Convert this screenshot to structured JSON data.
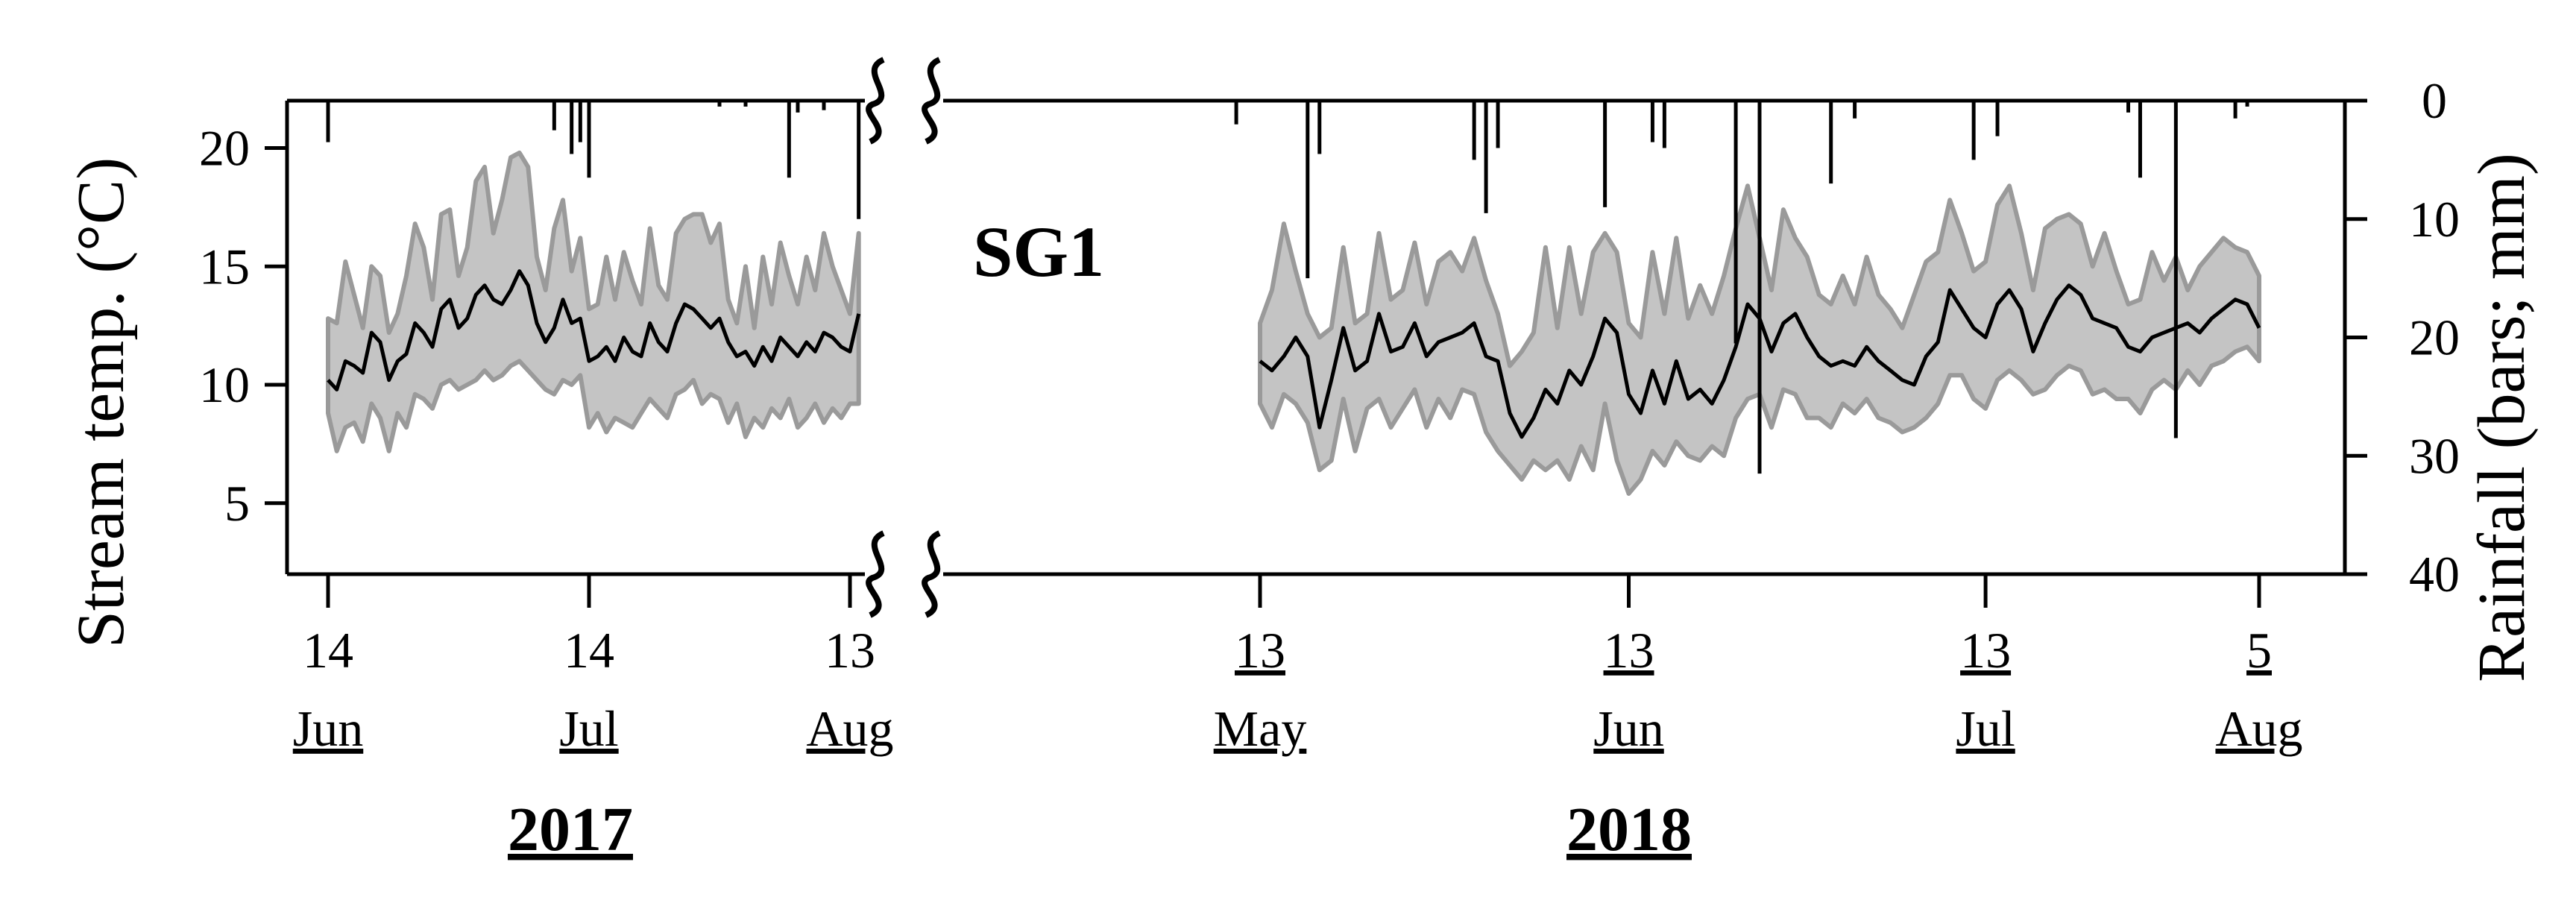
{
  "chart_data": {
    "type": "line",
    "panel_label": "SG1",
    "ylabel_left": "Stream temp. (°C)",
    "ylabel_right": "Rainfall (bars; mm)",
    "y_left_ticks": [
      "5",
      "10",
      "15",
      "20"
    ],
    "y_left_range": [
      2,
      22
    ],
    "y_right_ticks": [
      "0",
      "10",
      "20",
      "30",
      "40"
    ],
    "y_right_range": [
      0,
      40
    ],
    "segments": [
      {
        "year": "2017",
        "x_ticks": [
          {
            "date": "2017-06-14",
            "day": "14",
            "month": "Jun",
            "day_underlined": false
          },
          {
            "date": "2017-07-14",
            "day": "14",
            "month": "Jul",
            "day_underlined": false
          },
          {
            "date": "2017-08-13",
            "day": "13",
            "month": "Aug",
            "day_underlined": false
          }
        ],
        "x_range": [
          "2017-06-14",
          "2017-08-15"
        ],
        "series": [
          {
            "role": "daily_mean",
            "x": [
              "2017-06-14",
              "2017-06-15",
              "2017-06-16",
              "2017-06-17",
              "2017-06-18",
              "2017-06-19",
              "2017-06-20",
              "2017-06-21",
              "2017-06-22",
              "2017-06-23",
              "2017-06-24",
              "2017-06-25",
              "2017-06-26",
              "2017-06-27",
              "2017-06-28",
              "2017-06-29",
              "2017-06-30",
              "2017-07-01",
              "2017-07-02",
              "2017-07-03",
              "2017-07-04",
              "2017-07-05",
              "2017-07-06",
              "2017-07-07",
              "2017-07-08",
              "2017-07-09",
              "2017-07-10",
              "2017-07-11",
              "2017-07-12",
              "2017-07-13",
              "2017-07-14",
              "2017-07-15",
              "2017-07-16",
              "2017-07-17",
              "2017-07-18",
              "2017-07-19",
              "2017-07-20",
              "2017-07-21",
              "2017-07-22",
              "2017-07-23",
              "2017-07-24",
              "2017-07-25",
              "2017-07-26",
              "2017-07-27",
              "2017-07-28",
              "2017-07-29",
              "2017-07-30",
              "2017-07-31",
              "2017-08-01",
              "2017-08-02",
              "2017-08-03",
              "2017-08-04",
              "2017-08-05",
              "2017-08-06",
              "2017-08-07",
              "2017-08-08",
              "2017-08-09",
              "2017-08-10",
              "2017-08-11",
              "2017-08-12",
              "2017-08-13",
              "2017-08-14"
            ],
            "values": [
              10.2,
              9.8,
              11.0,
              10.8,
              10.5,
              12.2,
              11.8,
              10.2,
              11.0,
              11.3,
              12.6,
              12.2,
              11.6,
              13.2,
              13.6,
              12.4,
              12.8,
              13.8,
              14.2,
              13.6,
              13.4,
              14.0,
              14.8,
              14.2,
              12.6,
              11.8,
              12.4,
              13.6,
              12.6,
              12.8,
              11.0,
              11.2,
              11.6,
              11.0,
              12.0,
              11.4,
              11.2,
              12.6,
              11.8,
              11.4,
              12.6,
              13.4,
              13.2,
              12.8,
              12.4,
              12.8,
              11.8,
              11.2,
              11.4,
              10.8,
              11.6,
              11.0,
              12.0,
              11.6,
              11.2,
              11.8,
              11.4,
              12.2,
              12.0,
              11.6,
              11.4,
              13.0
            ]
          },
          {
            "role": "daily_max",
            "values": [
              12.8,
              12.6,
              15.2,
              13.8,
              12.4,
              15.0,
              14.6,
              12.2,
              13.0,
              14.6,
              16.8,
              15.8,
              13.6,
              17.2,
              17.4,
              14.6,
              15.8,
              18.6,
              19.2,
              16.4,
              17.8,
              19.6,
              19.8,
              19.2,
              15.4,
              14.0,
              16.6,
              17.8,
              14.8,
              16.2,
              13.2,
              13.4,
              15.4,
              13.6,
              15.6,
              14.4,
              13.4,
              16.6,
              14.2,
              13.6,
              16.4,
              17.0,
              17.2,
              17.2,
              16.0,
              16.8,
              13.6,
              12.6,
              15.0,
              12.4,
              15.4,
              13.4,
              16.0,
              14.6,
              13.4,
              15.4,
              14.0,
              16.4,
              15.0,
              14.0,
              13.0,
              16.4
            ]
          },
          {
            "role": "daily_min",
            "values": [
              8.8,
              7.2,
              8.2,
              8.4,
              7.6,
              9.2,
              8.6,
              7.2,
              8.8,
              8.2,
              9.6,
              9.4,
              9.0,
              10.0,
              10.2,
              9.8,
              10.0,
              10.2,
              10.6,
              10.2,
              10.4,
              10.8,
              11.0,
              10.6,
              10.2,
              9.8,
              9.6,
              10.2,
              10.0,
              10.4,
              8.2,
              8.8,
              8.0,
              8.6,
              8.4,
              8.2,
              8.8,
              9.4,
              9.0,
              8.6,
              9.6,
              9.8,
              10.2,
              9.2,
              9.6,
              9.4,
              8.4,
              9.2,
              7.8,
              8.6,
              8.2,
              9.0,
              8.6,
              9.4,
              8.2,
              8.6,
              9.2,
              8.4,
              9.0,
              8.6,
              9.2,
              9.2
            ]
          }
        ],
        "rainfall_mm": [
          {
            "date": "2017-06-14",
            "value": 3.5
          },
          {
            "date": "2017-07-10",
            "value": 2.5
          },
          {
            "date": "2017-07-12",
            "value": 4.5
          },
          {
            "date": "2017-07-13",
            "value": 3.5
          },
          {
            "date": "2017-07-14",
            "value": 6.5
          },
          {
            "date": "2017-07-29",
            "value": 0.5
          },
          {
            "date": "2017-08-01",
            "value": 0.5
          },
          {
            "date": "2017-08-06",
            "value": 6.5
          },
          {
            "date": "2017-08-07",
            "value": 1.0
          },
          {
            "date": "2017-08-10",
            "value": 0.8
          },
          {
            "date": "2017-08-14",
            "value": 10.0
          }
        ]
      },
      {
        "year": "2018",
        "x_ticks": [
          {
            "date": "2018-05-13",
            "day": "13",
            "month": "May",
            "day_underlined": true
          },
          {
            "date": "2018-06-13",
            "day": "13",
            "month": "Jun",
            "day_underlined": true
          },
          {
            "date": "2018-07-13",
            "day": "13",
            "month": "Jul",
            "day_underlined": true
          },
          {
            "date": "2018-08-05",
            "day": "5",
            "month": "Aug",
            "day_underlined": true
          }
        ],
        "x_range": [
          "2018-05-08",
          "2018-08-09"
        ],
        "series": [
          {
            "role": "daily_mean",
            "x": [
              "2018-05-13",
              "2018-05-14",
              "2018-05-15",
              "2018-05-16",
              "2018-05-17",
              "2018-05-18",
              "2018-05-19",
              "2018-05-20",
              "2018-05-21",
              "2018-05-22",
              "2018-05-23",
              "2018-05-24",
              "2018-05-25",
              "2018-05-26",
              "2018-05-27",
              "2018-05-28",
              "2018-05-29",
              "2018-05-30",
              "2018-05-31",
              "2018-06-01",
              "2018-06-02",
              "2018-06-03",
              "2018-06-04",
              "2018-06-05",
              "2018-06-06",
              "2018-06-07",
              "2018-06-08",
              "2018-06-09",
              "2018-06-10",
              "2018-06-11",
              "2018-06-12",
              "2018-06-13",
              "2018-06-14",
              "2018-06-15",
              "2018-06-16",
              "2018-06-17",
              "2018-06-18",
              "2018-06-19",
              "2018-06-20",
              "2018-06-21",
              "2018-06-22",
              "2018-06-23",
              "2018-06-24",
              "2018-06-25",
              "2018-06-26",
              "2018-06-27",
              "2018-06-28",
              "2018-06-29",
              "2018-06-30",
              "2018-07-01",
              "2018-07-02",
              "2018-07-03",
              "2018-07-04",
              "2018-07-05",
              "2018-07-06",
              "2018-07-07",
              "2018-07-08",
              "2018-07-09",
              "2018-07-10",
              "2018-07-11",
              "2018-07-12",
              "2018-07-13",
              "2018-07-14",
              "2018-07-15",
              "2018-07-16",
              "2018-07-17",
              "2018-07-18",
              "2018-07-19",
              "2018-07-20",
              "2018-07-21",
              "2018-07-22",
              "2018-07-23",
              "2018-07-24",
              "2018-07-25",
              "2018-07-26",
              "2018-07-27",
              "2018-07-28",
              "2018-07-29",
              "2018-07-30",
              "2018-07-31",
              "2018-08-01",
              "2018-08-02",
              "2018-08-03",
              "2018-08-04",
              "2018-08-05"
            ],
            "values": [
              11.0,
              10.6,
              11.2,
              12.0,
              11.2,
              8.2,
              10.2,
              12.4,
              10.6,
              11.0,
              13.0,
              11.4,
              11.6,
              12.6,
              11.2,
              11.8,
              12.0,
              12.2,
              12.6,
              11.2,
              11.0,
              8.8,
              7.8,
              8.6,
              9.8,
              9.2,
              10.6,
              10.0,
              11.2,
              12.8,
              12.2,
              9.6,
              8.8,
              10.6,
              9.2,
              11.0,
              9.4,
              9.8,
              9.2,
              10.2,
              11.6,
              13.4,
              12.8,
              11.4,
              12.6,
              13.0,
              12.0,
              11.2,
              10.8,
              11.0,
              10.8,
              11.6,
              11.0,
              10.6,
              10.2,
              10.0,
              11.2,
              11.8,
              14.0,
              13.2,
              12.4,
              12.0,
              13.4,
              14.0,
              13.2,
              11.4,
              12.6,
              13.6,
              14.2,
              13.8,
              12.8,
              12.6,
              12.4,
              11.6,
              11.4,
              12.0,
              12.2,
              12.4,
              12.6,
              12.2,
              12.8,
              13.2,
              13.6,
              13.4,
              12.4
            ]
          },
          {
            "role": "daily_max",
            "values": [
              12.6,
              14.0,
              16.8,
              14.8,
              13.0,
              12.0,
              12.4,
              15.8,
              12.6,
              13.0,
              16.4,
              13.6,
              14.0,
              16.0,
              13.4,
              15.2,
              15.6,
              14.8,
              16.2,
              14.4,
              13.0,
              10.8,
              11.4,
              12.2,
              15.8,
              12.4,
              15.8,
              13.0,
              15.6,
              16.4,
              15.6,
              12.6,
              12.0,
              15.6,
              13.0,
              16.2,
              12.8,
              14.2,
              13.0,
              14.6,
              16.6,
              18.4,
              16.2,
              14.0,
              17.4,
              16.2,
              15.4,
              13.8,
              13.4,
              14.6,
              13.4,
              15.4,
              13.8,
              13.2,
              12.4,
              13.8,
              15.2,
              15.6,
              17.8,
              16.4,
              14.8,
              15.2,
              17.6,
              18.4,
              16.4,
              14.0,
              16.6,
              17.0,
              17.2,
              16.8,
              15.0,
              16.4,
              14.8,
              13.4,
              13.6,
              15.6,
              14.4,
              15.4,
              14.0,
              15.0,
              15.6,
              16.2,
              15.8,
              15.6,
              14.6
            ]
          },
          {
            "role": "daily_min",
            "values": [
              9.2,
              8.2,
              9.6,
              9.2,
              8.4,
              6.4,
              6.8,
              9.4,
              7.2,
              9.0,
              9.4,
              8.2,
              9.0,
              9.8,
              8.2,
              9.4,
              8.6,
              9.8,
              9.6,
              8.0,
              7.2,
              6.6,
              6.0,
              6.8,
              6.4,
              6.8,
              6.0,
              7.4,
              6.4,
              9.2,
              6.8,
              5.4,
              6.0,
              7.2,
              6.6,
              7.6,
              7.0,
              6.8,
              7.4,
              7.0,
              8.6,
              9.4,
              9.6,
              8.2,
              9.8,
              9.6,
              8.6,
              8.6,
              8.2,
              9.2,
              8.8,
              9.4,
              8.6,
              8.4,
              8.0,
              8.2,
              8.6,
              9.2,
              10.4,
              10.4,
              9.4,
              9.0,
              10.2,
              10.6,
              10.2,
              9.6,
              9.8,
              10.4,
              10.8,
              10.6,
              9.6,
              9.8,
              9.4,
              9.4,
              8.8,
              9.8,
              10.2,
              9.8,
              10.6,
              10.0,
              10.8,
              11.0,
              11.4,
              11.6,
              11.0
            ]
          }
        ],
        "rainfall_mm": [
          {
            "date": "2018-05-11",
            "value": 2.0
          },
          {
            "date": "2018-05-17",
            "value": 15.0
          },
          {
            "date": "2018-05-18",
            "value": 4.5
          },
          {
            "date": "2018-05-31",
            "value": 5.0
          },
          {
            "date": "2018-06-01",
            "value": 9.5
          },
          {
            "date": "2018-06-02",
            "value": 4.0
          },
          {
            "date": "2018-06-11",
            "value": 9.0
          },
          {
            "date": "2018-06-15",
            "value": 3.5
          },
          {
            "date": "2018-06-16",
            "value": 4.0
          },
          {
            "date": "2018-06-22",
            "value": 20.5
          },
          {
            "date": "2018-06-24",
            "value": 31.5
          },
          {
            "date": "2018-06-30",
            "value": 7.0
          },
          {
            "date": "2018-07-02",
            "value": 1.5
          },
          {
            "date": "2018-07-12",
            "value": 5.0
          },
          {
            "date": "2018-07-14",
            "value": 3.0
          },
          {
            "date": "2018-07-25",
            "value": 1.0
          },
          {
            "date": "2018-07-26",
            "value": 6.5
          },
          {
            "date": "2018-07-29",
            "value": 28.5
          },
          {
            "date": "2018-08-03",
            "value": 1.5
          },
          {
            "date": "2018-08-04",
            "value": 0.5
          }
        ]
      }
    ],
    "colors": {
      "range_fill": "#c4c4c4",
      "range_edge": "#9a9a9a",
      "mean_line": "#000000",
      "rain_bars": "#000000",
      "axes": "#000000"
    },
    "axis_break": true,
    "grid": false
  }
}
